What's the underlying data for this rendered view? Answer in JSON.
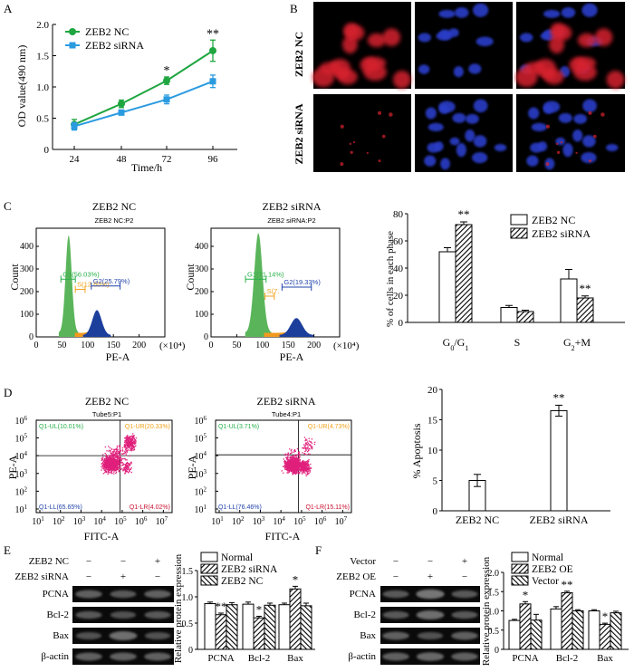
{
  "colors": {
    "nc": "#1fa640",
    "sirna": "#2b9be0",
    "green_hist": "#5ab55a",
    "orange_hist": "#f29a1e",
    "blue_hist": "#1c3f9c",
    "gate_green": "#27b04a",
    "gate_orange": "#f0a21c",
    "gate_blue": "#2244aa",
    "scatter": "#e0207c",
    "blot_bg": "#0a0a0a",
    "cell_red": "#d6222d",
    "cell_blue": "#2a3cc8"
  },
  "panel_labels": [
    "A",
    "B",
    "C",
    "D",
    "E",
    "F"
  ],
  "chart_data": [
    {
      "id": "A",
      "type": "line",
      "title": "",
      "xlabel": "Time/h",
      "ylabel": "OD value(490 nm)",
      "x": [
        24,
        48,
        72,
        96
      ],
      "xticks": [
        "24",
        "48",
        "72",
        "96"
      ],
      "ylim": [
        0,
        2.0
      ],
      "yticks": [
        "0",
        "0.5",
        "1.0",
        "1.5",
        "2.0"
      ],
      "series": [
        {
          "name": "ZEB2 NC",
          "values": [
            0.4,
            0.73,
            1.1,
            1.58
          ],
          "errors": [
            0.08,
            0.06,
            0.06,
            0.17
          ]
        },
        {
          "name": "ZEB2 siRNA",
          "values": [
            0.37,
            0.59,
            0.8,
            1.09
          ],
          "errors": [
            0.06,
            0.04,
            0.07,
            0.1
          ]
        }
      ],
      "annotations": [
        {
          "x": 72,
          "text": "*"
        },
        {
          "x": 96,
          "text": "**"
        }
      ]
    },
    {
      "id": "C-hist-NC",
      "type": "histogram",
      "title": "ZEB2 NC",
      "subtitle": "ZEB2 NC:P2",
      "xlabel": "PE-A",
      "ylabel": "Count",
      "xunit": "(×10⁴)",
      "xlim": [
        0,
        250
      ],
      "xticks": [
        "0",
        "50",
        "100",
        "150",
        "200"
      ],
      "ylim": [
        0,
        480
      ],
      "yticks": [
        "0",
        "100",
        "200",
        "300",
        "400"
      ],
      "gates": [
        {
          "name": "G1",
          "text": "G1(56.03%)",
          "from": 48,
          "to": 76,
          "color": "gate_green"
        },
        {
          "name": "S",
          "text": "S(12.60%)",
          "from": 76,
          "to": 95,
          "color": "gate_orange"
        },
        {
          "name": "G2",
          "text": "G2(25.79%)",
          "from": 107,
          "to": 163,
          "color": "gate_blue"
        }
      ]
    },
    {
      "id": "C-hist-siRNA",
      "type": "histogram",
      "title": "ZEB2 siRNA",
      "subtitle": "ZEB2 siRNA:P2",
      "xlabel": "PE-A",
      "ylabel": "Count",
      "xunit": "(×10⁴)",
      "xlim": [
        0,
        250
      ],
      "xticks": [
        "0",
        "50",
        "100",
        "150",
        "200"
      ],
      "ylim": [
        0,
        480
      ],
      "yticks": [
        "0",
        "100",
        "200",
        "300",
        "400"
      ],
      "gates": [
        {
          "name": "G1",
          "text": "G1(71.14%)",
          "from": 67,
          "to": 107,
          "color": "gate_green"
        },
        {
          "name": "S",
          "text": "S(7.",
          "from": 105,
          "to": 123,
          "color": "gate_orange"
        },
        {
          "name": "G2",
          "text": "G2(19.33%)",
          "from": 138,
          "to": 195,
          "color": "gate_blue"
        }
      ]
    },
    {
      "id": "C-bar",
      "type": "bar",
      "title": "",
      "ylabel": "% of cells in each phase",
      "categories": [
        "G0/G1",
        "S",
        "G2+M"
      ],
      "ylim": [
        0,
        80
      ],
      "yticks": [
        "0",
        "20",
        "40",
        "60",
        "80"
      ],
      "series": [
        {
          "name": "ZEB2 NC",
          "values": [
            52,
            11,
            32
          ],
          "errors": [
            3,
            1.5,
            7
          ]
        },
        {
          "name": "ZEB2 siRNA",
          "values": [
            72,
            8,
            18
          ],
          "errors": [
            2,
            1,
            1.5
          ]
        }
      ],
      "annotations": [
        {
          "category": "G0/G1",
          "text": "**"
        },
        {
          "category": "G2+M",
          "text": "**"
        }
      ]
    },
    {
      "id": "D-scatter-NC",
      "type": "scatter",
      "title": "ZEB2 NC",
      "subtitle": "Tube5:P1",
      "xlabel": "FITC-A",
      "ylabel": "PE-A",
      "xticks_exp": [
        "1",
        "2",
        "3",
        "4",
        "5",
        "6",
        "7"
      ],
      "yticks_exp": [
        "1",
        "2",
        "3",
        "4",
        "5",
        "6"
      ],
      "quadrants": {
        "UL": "Q1-UL(10.01%)",
        "UR": "Q1-UR(20.33%)",
        "LL": "Q1-LL(65.65%)",
        "LR": "Q1-LR(4.02%)"
      }
    },
    {
      "id": "D-scatter-siRNA",
      "type": "scatter",
      "title": "ZEB2 siRNA",
      "subtitle": "Tube4:P1",
      "xlabel": "FITC-A",
      "ylabel": "PE-A",
      "xticks_exp": [
        "1",
        "2",
        "3",
        "4",
        "5",
        "6",
        "7"
      ],
      "yticks_exp": [
        "1",
        "2",
        "3",
        "4",
        "5",
        "6"
      ],
      "quadrants": {
        "UL": "Q1-UL(3.71%)",
        "UR": "Q1-UR(4.73%)",
        "LL": "Q1-LL(76.46%)",
        "LR": "Q1-LR(15.11%)"
      }
    },
    {
      "id": "D-bar",
      "type": "bar",
      "ylabel": "% Apoptosis",
      "categories": [
        "ZEB2 NC",
        "ZEB2 siRNA"
      ],
      "ylim": [
        0,
        20
      ],
      "yticks": [
        "0",
        "5",
        "10",
        "15",
        "20"
      ],
      "values": [
        5.0,
        16.5
      ],
      "errors": [
        1.0,
        0.9
      ],
      "annotations": [
        {
          "category": "ZEB2 siRNA",
          "text": "**"
        }
      ]
    },
    {
      "id": "E-bar",
      "type": "bar",
      "ylabel": "Relative protein expression",
      "categories": [
        "PCNA",
        "Bcl-2",
        "Bax"
      ],
      "ylim": [
        0,
        1.5
      ],
      "yticks": [
        "0",
        "0.5",
        "1.0",
        "1.5"
      ],
      "series": [
        {
          "name": "Normal",
          "values": [
            0.87,
            0.86,
            0.85
          ],
          "errors": [
            0.03,
            0.04,
            0.03
          ]
        },
        {
          "name": "ZEB2 siRNA",
          "values": [
            0.66,
            0.6,
            1.15
          ],
          "errors": [
            0.03,
            0.03,
            0.05
          ]
        },
        {
          "name": "ZEB2 NC",
          "values": [
            0.85,
            0.84,
            0.83
          ],
          "errors": [
            0.04,
            0.04,
            0.05
          ]
        }
      ],
      "annotations": [
        {
          "category": "PCNA",
          "text": "**"
        },
        {
          "category": "Bcl-2",
          "text": "*"
        },
        {
          "category": "Bax",
          "text": "*"
        }
      ]
    },
    {
      "id": "F-bar",
      "type": "bar",
      "ylabel": "Relative protein expression",
      "categories": [
        "PCNA",
        "Bcl-2",
        "Bax"
      ],
      "ylim": [
        0,
        2.0
      ],
      "yticks": [
        "0",
        "0.5",
        "1.0",
        "1.5",
        "2.0"
      ],
      "series": [
        {
          "name": "Normal",
          "values": [
            0.75,
            1.05,
            1.0
          ],
          "errors": [
            0.03,
            0.06,
            0.03
          ]
        },
        {
          "name": "ZEB2 OE",
          "values": [
            1.18,
            1.47,
            0.65
          ],
          "errors": [
            0.06,
            0.04,
            0.03
          ]
        },
        {
          "name": "Vector",
          "values": [
            0.76,
            1.0,
            0.95
          ],
          "errors": [
            0.15,
            0.03,
            0.04
          ]
        }
      ],
      "annotations": [
        {
          "category": "PCNA",
          "text": "*"
        },
        {
          "category": "Bcl-2",
          "text": "**"
        },
        {
          "category": "Bax",
          "text": "*"
        }
      ]
    }
  ],
  "panel_b": {
    "row_labels": [
      "ZEB2 NC",
      "ZEB2 siRNA"
    ]
  },
  "panel_e_blot": {
    "conditions": [
      {
        "label": "ZEB2 NC",
        "marks": [
          "−",
          "−",
          "+"
        ]
      },
      {
        "label": "ZEB2 siRNA",
        "marks": [
          "−",
          "+",
          "−"
        ]
      }
    ],
    "rows": [
      "PCNA",
      "Bcl-2",
      "Bax",
      "β-actin"
    ]
  },
  "panel_f_blot": {
    "conditions": [
      {
        "label": "Vector",
        "marks": [
          "−",
          "−",
          "+"
        ]
      },
      {
        "label": "ZEB2 OE",
        "marks": [
          "−",
          "+",
          "−"
        ]
      }
    ],
    "rows": [
      "PCNA",
      "Bcl-2",
      "Bax",
      "β-actin"
    ]
  }
}
